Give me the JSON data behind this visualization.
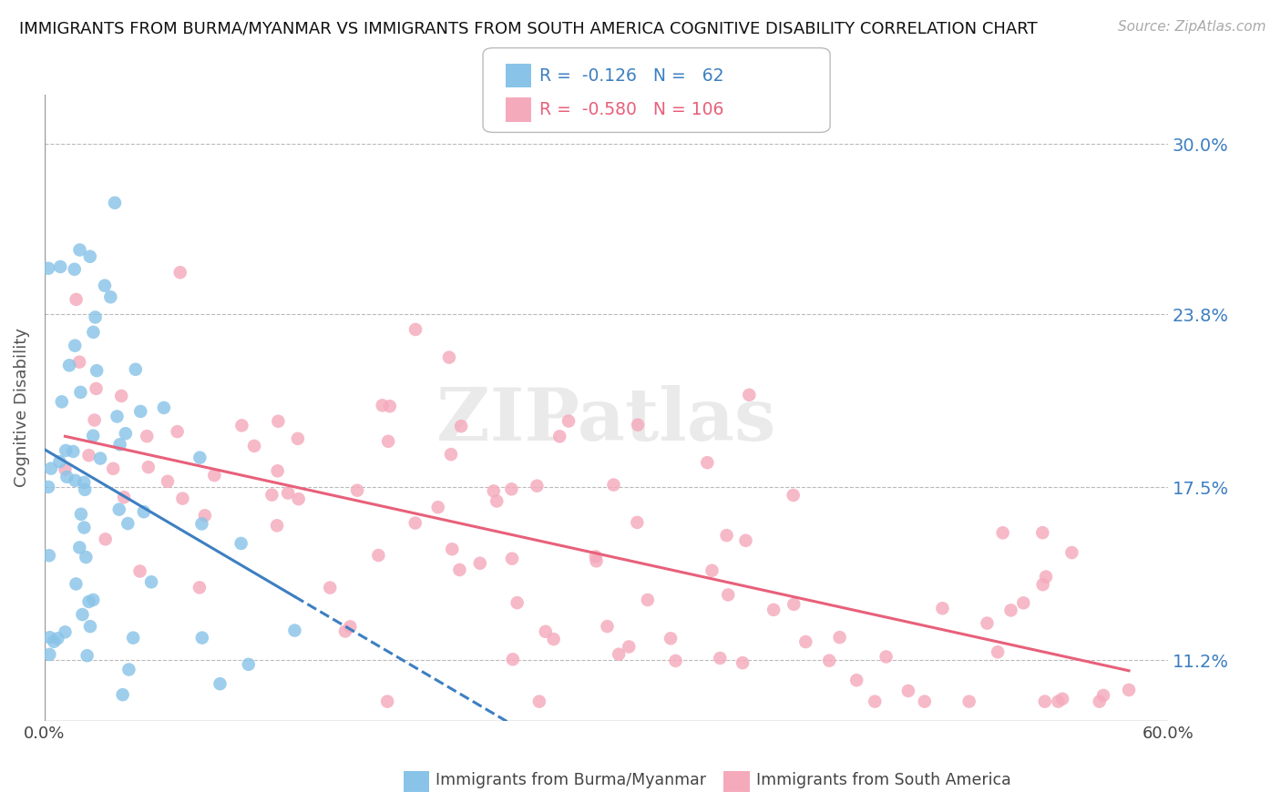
{
  "title": "IMMIGRANTS FROM BURMA/MYANMAR VS IMMIGRANTS FROM SOUTH AMERICA COGNITIVE DISABILITY CORRELATION CHART",
  "source": "Source: ZipAtlas.com",
  "ylabel": "Cognitive Disability",
  "yticks": [
    0.112,
    0.175,
    0.238,
    0.3
  ],
  "ytick_labels": [
    "11.2%",
    "17.5%",
    "23.8%",
    "30.0%"
  ],
  "xlim": [
    0.0,
    0.6
  ],
  "ylim": [
    0.09,
    0.318
  ],
  "series1_color": "#89C4E8",
  "series2_color": "#F5AABC",
  "trendline1_color": "#3D7FC1",
  "trendline2_color": "#E8607A",
  "legend_label1": "Immigrants from Burma/Myanmar",
  "legend_label2": "Immigrants from South America",
  "watermark": "ZIPatlas",
  "R1": -0.126,
  "N1": 62,
  "R2": -0.58,
  "N2": 106
}
